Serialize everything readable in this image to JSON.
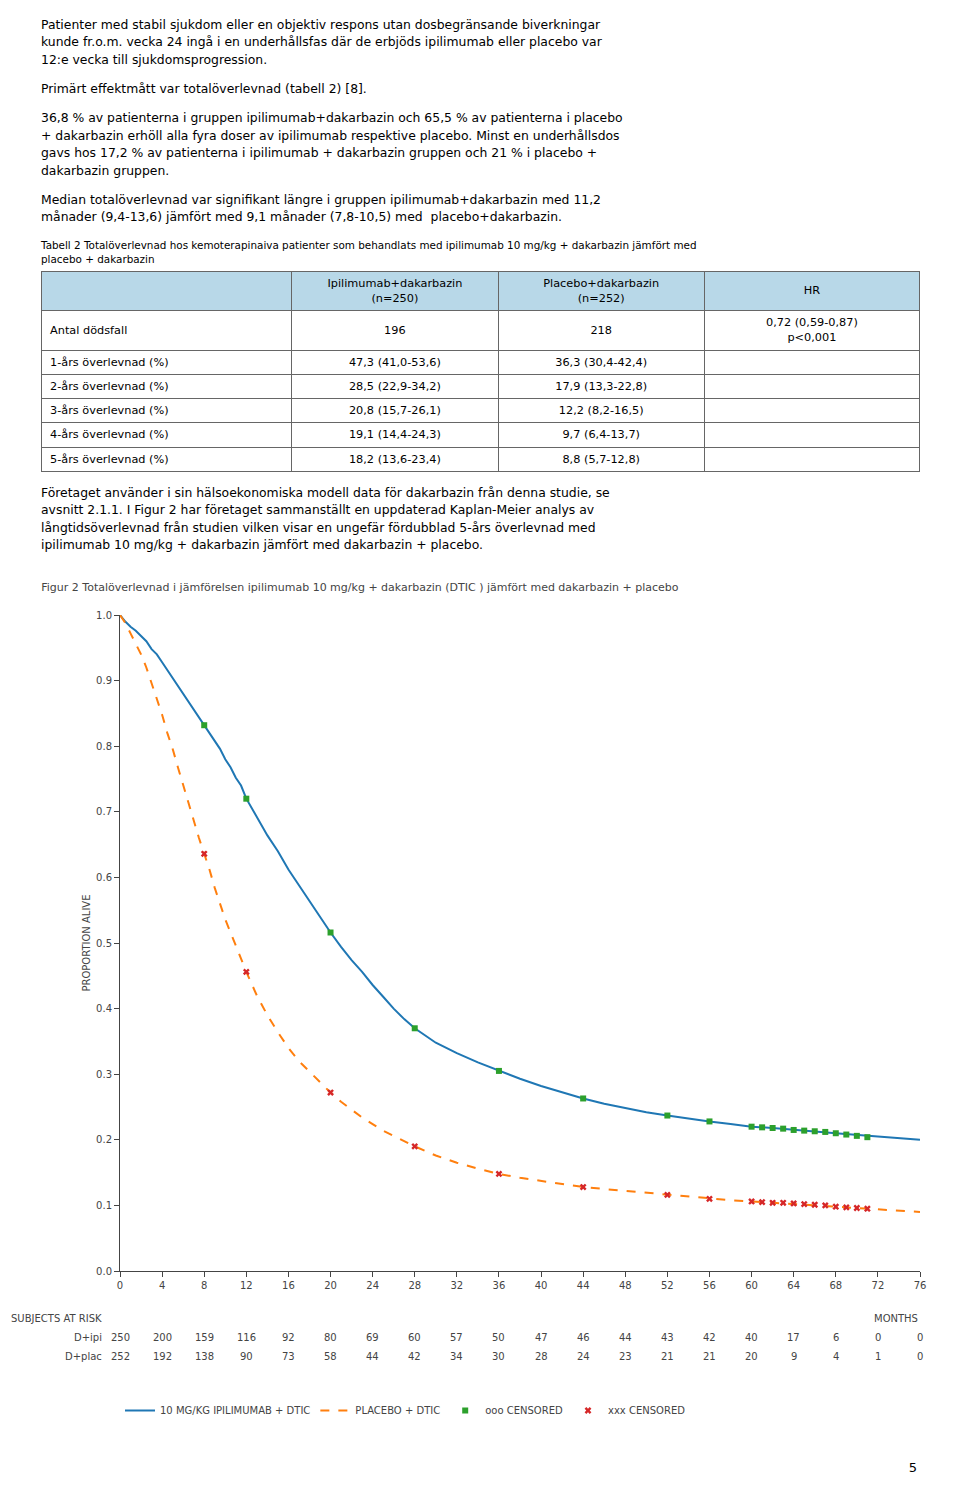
{
  "document": {
    "paragraphs_above": [
      [
        "Patienter med stabil sjukdom eller en objektiv respons utan dosbegränsande biverkningar",
        "kunde fr.o.m. vecka 24 ingå i en underhållsfas där de erbjöds ipilimumab eller placebo var",
        "12:e vecka till sjukdomsprogression."
      ],
      [
        "Primärt effektmått var totalöverlevnad (tabell 2) [8]."
      ],
      [
        "36,8 % av patienterna i gruppen ipilimumab+dakarbazin och 65,5 % av patienterna i placebo",
        "+ dakarbazin erhöll alla fyra doser av ipilimumab respektive placebo. Minst en underhållsdos",
        "gavs hos 17,2 % av patienterna i ipilimumab + dakarbazin gruppen och 21 % i placebo +",
        "dakarbazin gruppen."
      ],
      [
        "Median totalöverlevnad var signifikant längre i gruppen ipilimumab+dakarbazin med 11,2",
        "månader (9,4-13,6) jämfört med 9,1 månader (7,8-10,5) med  placebo+dakarbazin."
      ]
    ],
    "table_caption": [
      "Tabell 2 Totalöverlevnad hos kemoterapinaiva patienter som behandlats med ipilimumab 10 mg/kg + dakarbazin jämfört med",
      "placebo + dakarbazin"
    ],
    "table": {
      "header_color": "#b8d8e8",
      "columns": [
        null,
        "Ipilimumab+dakarbazin\n(n=250)",
        "Placebo+dakarbazin\n(n=252)",
        "HR"
      ],
      "rows": [
        [
          "Antal dödsfall",
          "196",
          "218",
          "0,72 (0,59-0,87)\np<0,001"
        ],
        [
          "1-års överlevnad (%)",
          "47,3 (41,0-53,6)",
          "36,3 (30,4-42,4)",
          null
        ],
        [
          "2-års överlevnad (%)",
          "28,5 (22,9-34,2)",
          "17,9 (13,3-22,8)",
          null
        ],
        [
          "3-års överlevnad (%)",
          "20,8 (15,7-26,1)",
          "12,2 (8,2-16,5)",
          null
        ],
        [
          "4-års överlevnad (%)",
          "19,1 (14,4-24,3)",
          "9,7 (6,4-13,7)",
          null
        ],
        [
          "5-års överlevnad (%)",
          "18,2 (13,6-23,4)",
          "8,8 (5,7-12,8)",
          null
        ]
      ]
    },
    "paragraphs_below": [
      [
        "Företaget använder i sin hälsoekonomiska modell data för dakarbazin från denna studie, se",
        "avsnitt 2.1.1. I Figur 2 har företaget sammanställt en uppdaterad Kaplan-Meier analys av",
        "långtidsöverlevnad från studien vilken visar en ungefär fördubblad 5-års överlevnad med",
        "ipilimumab 10 mg/kg + dakarbazin jämfört med dakarbazin + placebo."
      ]
    ],
    "page_number": "5"
  },
  "chart_data": {
    "type": "line",
    "title": "Figur 2 Totalöverlevnad i jämförelsen ipilimumab 10 mg/kg + dakarbazin (DTIC ) jämfört med dakarbazin + placebo",
    "ylabel": "PROPORTION ALIVE",
    "xlabel": "MONTHS",
    "xlim": [
      0,
      76
    ],
    "xticks": [
      0,
      4,
      8,
      12,
      16,
      20,
      24,
      28,
      32,
      36,
      40,
      44,
      48,
      52,
      56,
      60,
      64,
      68,
      72,
      76
    ],
    "ylim": [
      0,
      1
    ],
    "yticks": [
      {
        "value": 0,
        "label": "0.0"
      },
      0.1,
      0.2,
      0.3,
      0.4,
      0.5,
      0.6,
      0.7,
      0.8,
      0.9,
      {
        "value": 1,
        "label": "1.0"
      }
    ],
    "grid": false,
    "legend": "bottom",
    "series": [
      {
        "name": "10 MG/KG IPILIMUMAB + DTIC",
        "type": "line",
        "line_style": "solid",
        "x": [
          0,
          0.5,
          1,
          1.5,
          2,
          2.5,
          3,
          3.5,
          4,
          4.5,
          5,
          5.5,
          6,
          6.5,
          7,
          7.5,
          8,
          8.5,
          9,
          9.5,
          10,
          10.5,
          11,
          11.5,
          12,
          13,
          14,
          15,
          16,
          17,
          18,
          19,
          20,
          21,
          22,
          23,
          24,
          25,
          26,
          27,
          28,
          30,
          32,
          34,
          36,
          38,
          40,
          42,
          44,
          46,
          48,
          50,
          52,
          54,
          56,
          58,
          60,
          62,
          64,
          68,
          72,
          76
        ],
        "values": [
          1.0,
          0.99,
          0.982,
          0.976,
          0.968,
          0.96,
          0.948,
          0.94,
          0.928,
          0.916,
          0.904,
          0.892,
          0.88,
          0.868,
          0.856,
          0.844,
          0.832,
          0.82,
          0.808,
          0.796,
          0.78,
          0.768,
          0.752,
          0.74,
          0.72,
          0.692,
          0.664,
          0.64,
          0.612,
          0.588,
          0.564,
          0.54,
          0.516,
          0.494,
          0.474,
          0.456,
          0.436,
          0.418,
          0.4,
          0.384,
          0.37,
          0.348,
          0.332,
          0.318,
          0.305,
          0.293,
          0.282,
          0.272,
          0.263,
          0.255,
          0.248,
          0.242,
          0.237,
          0.232,
          0.228,
          0.224,
          0.22,
          0.218,
          0.215,
          0.21,
          0.205,
          0.2
        ]
      },
      {
        "name": "PLACEBO + DTIC",
        "type": "line",
        "line_style": "dashed",
        "x": [
          0,
          0.5,
          1,
          1.5,
          2,
          2.5,
          3,
          3.5,
          4,
          4.5,
          5,
          5.5,
          6,
          6.5,
          7,
          7.5,
          8,
          8.5,
          9,
          9.5,
          10,
          10.5,
          11,
          11.5,
          12,
          13,
          14,
          15,
          16,
          17,
          18,
          19,
          20,
          21,
          22,
          23,
          24,
          25,
          26,
          27,
          28,
          30,
          32,
          34,
          36,
          38,
          40,
          42,
          44,
          46,
          48,
          50,
          52,
          54,
          56,
          58,
          60,
          62,
          64,
          68,
          72,
          76
        ],
        "values": [
          1.0,
          0.988,
          0.972,
          0.956,
          0.94,
          0.92,
          0.896,
          0.872,
          0.848,
          0.82,
          0.796,
          0.768,
          0.74,
          0.712,
          0.684,
          0.66,
          0.636,
          0.612,
          0.584,
          0.56,
          0.536,
          0.516,
          0.496,
          0.476,
          0.456,
          0.42,
          0.39,
          0.364,
          0.34,
          0.32,
          0.304,
          0.288,
          0.272,
          0.258,
          0.246,
          0.234,
          0.224,
          0.214,
          0.206,
          0.198,
          0.19,
          0.176,
          0.165,
          0.156,
          0.148,
          0.142,
          0.137,
          0.132,
          0.128,
          0.125,
          0.122,
          0.119,
          0.116,
          0.113,
          0.11,
          0.108,
          0.106,
          0.104,
          0.102,
          0.098,
          0.095,
          0.09
        ]
      },
      {
        "name": "ooo CENSORED",
        "type": "scatter",
        "marker": "square",
        "x": [
          8,
          12,
          20,
          28,
          36,
          44,
          52,
          56,
          60,
          61,
          62,
          63,
          64,
          65,
          66,
          67,
          68,
          69,
          70,
          71
        ],
        "values": [
          0.832,
          0.72,
          0.516,
          0.37,
          0.305,
          0.263,
          0.237,
          0.228,
          0.22,
          0.219,
          0.218,
          0.217,
          0.215,
          0.214,
          0.213,
          0.212,
          0.21,
          0.208,
          0.206,
          0.204
        ]
      },
      {
        "name": "xxx CENSORED",
        "type": "scatter",
        "marker": "x",
        "x": [
          8,
          12,
          20,
          28,
          36,
          44,
          52,
          56,
          60,
          61,
          62,
          63,
          64,
          65,
          66,
          67,
          68,
          69,
          70,
          71
        ],
        "values": [
          0.636,
          0.456,
          0.272,
          0.19,
          0.148,
          0.128,
          0.116,
          0.11,
          0.106,
          0.105,
          0.104,
          0.104,
          0.103,
          0.102,
          0.101,
          0.1,
          0.098,
          0.097,
          0.096,
          0.095
        ]
      }
    ],
    "subjects_at_risk": {
      "label": "SUBJECTS AT RISK",
      "x": [
        0,
        4,
        8,
        12,
        16,
        20,
        24,
        28,
        32,
        36,
        40,
        44,
        48,
        52,
        56,
        60,
        64,
        68,
        72,
        76
      ],
      "rows": [
        {
          "name": "D+ipi",
          "values": [
            250,
            200,
            159,
            116,
            92,
            80,
            69,
            60,
            57,
            50,
            47,
            46,
            44,
            43,
            42,
            40,
            17,
            6,
            0,
            0
          ]
        },
        {
          "name": "D+plac",
          "values": [
            252,
            192,
            138,
            90,
            73,
            58,
            44,
            42,
            34,
            30,
            28,
            24,
            23,
            21,
            21,
            20,
            9,
            4,
            1,
            0
          ]
        }
      ]
    }
  }
}
